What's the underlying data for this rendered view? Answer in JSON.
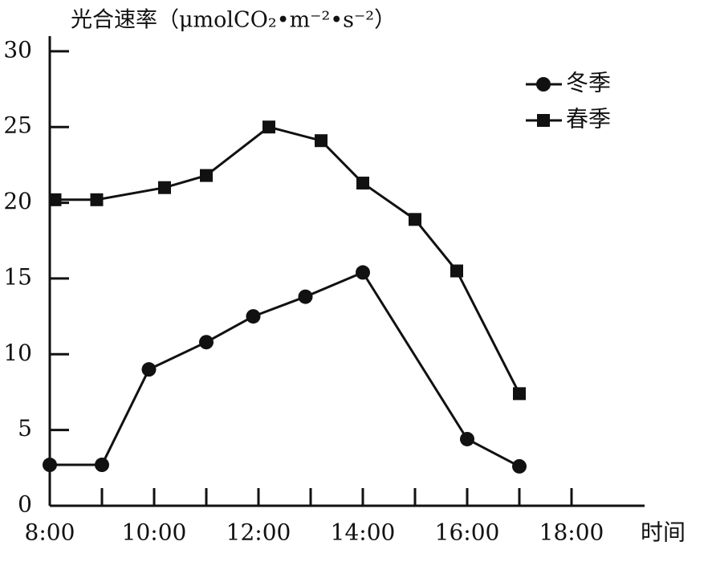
{
  "chart_data": {
    "type": "line",
    "y_label": "光合速率（μmolCO₂•m⁻²•s⁻²）",
    "x_label": "时间",
    "xlim": [
      8,
      19.4
    ],
    "xticks": [
      {
        "value": 8,
        "label": "8:00"
      },
      {
        "value": 9,
        "label": null
      },
      {
        "value": 10,
        "label": "10:00"
      },
      {
        "value": 11,
        "label": null
      },
      {
        "value": 12,
        "label": "12:00"
      },
      {
        "value": 13,
        "label": null
      },
      {
        "value": 14,
        "label": "14:00"
      },
      {
        "value": 15,
        "label": null
      },
      {
        "value": 16,
        "label": "16:00"
      },
      {
        "value": 17,
        "label": null
      },
      {
        "value": 18,
        "label": "18:00"
      }
    ],
    "ylim": [
      0,
      31
    ],
    "yticks": [
      0,
      5,
      10,
      15,
      20,
      25,
      30
    ],
    "legend": "top-right",
    "series": [
      {
        "name": "冬季",
        "color": "#111111",
        "marker": "circle",
        "x": [
          8,
          9,
          9.9,
          11,
          11.9,
          12.9,
          14,
          16,
          17
        ],
        "values": [
          2.7,
          2.7,
          9.0,
          10.8,
          12.5,
          13.8,
          15.4,
          4.4,
          2.6
        ]
      },
      {
        "name": "春季",
        "color": "#111111",
        "marker": "square",
        "x": [
          8.1,
          8.9,
          10.2,
          11,
          12.2,
          13.2,
          14,
          15,
          15.8,
          17
        ],
        "values": [
          20.2,
          20.2,
          21.0,
          21.8,
          25.0,
          24.1,
          21.3,
          18.9,
          15.5,
          7.4
        ]
      }
    ]
  }
}
